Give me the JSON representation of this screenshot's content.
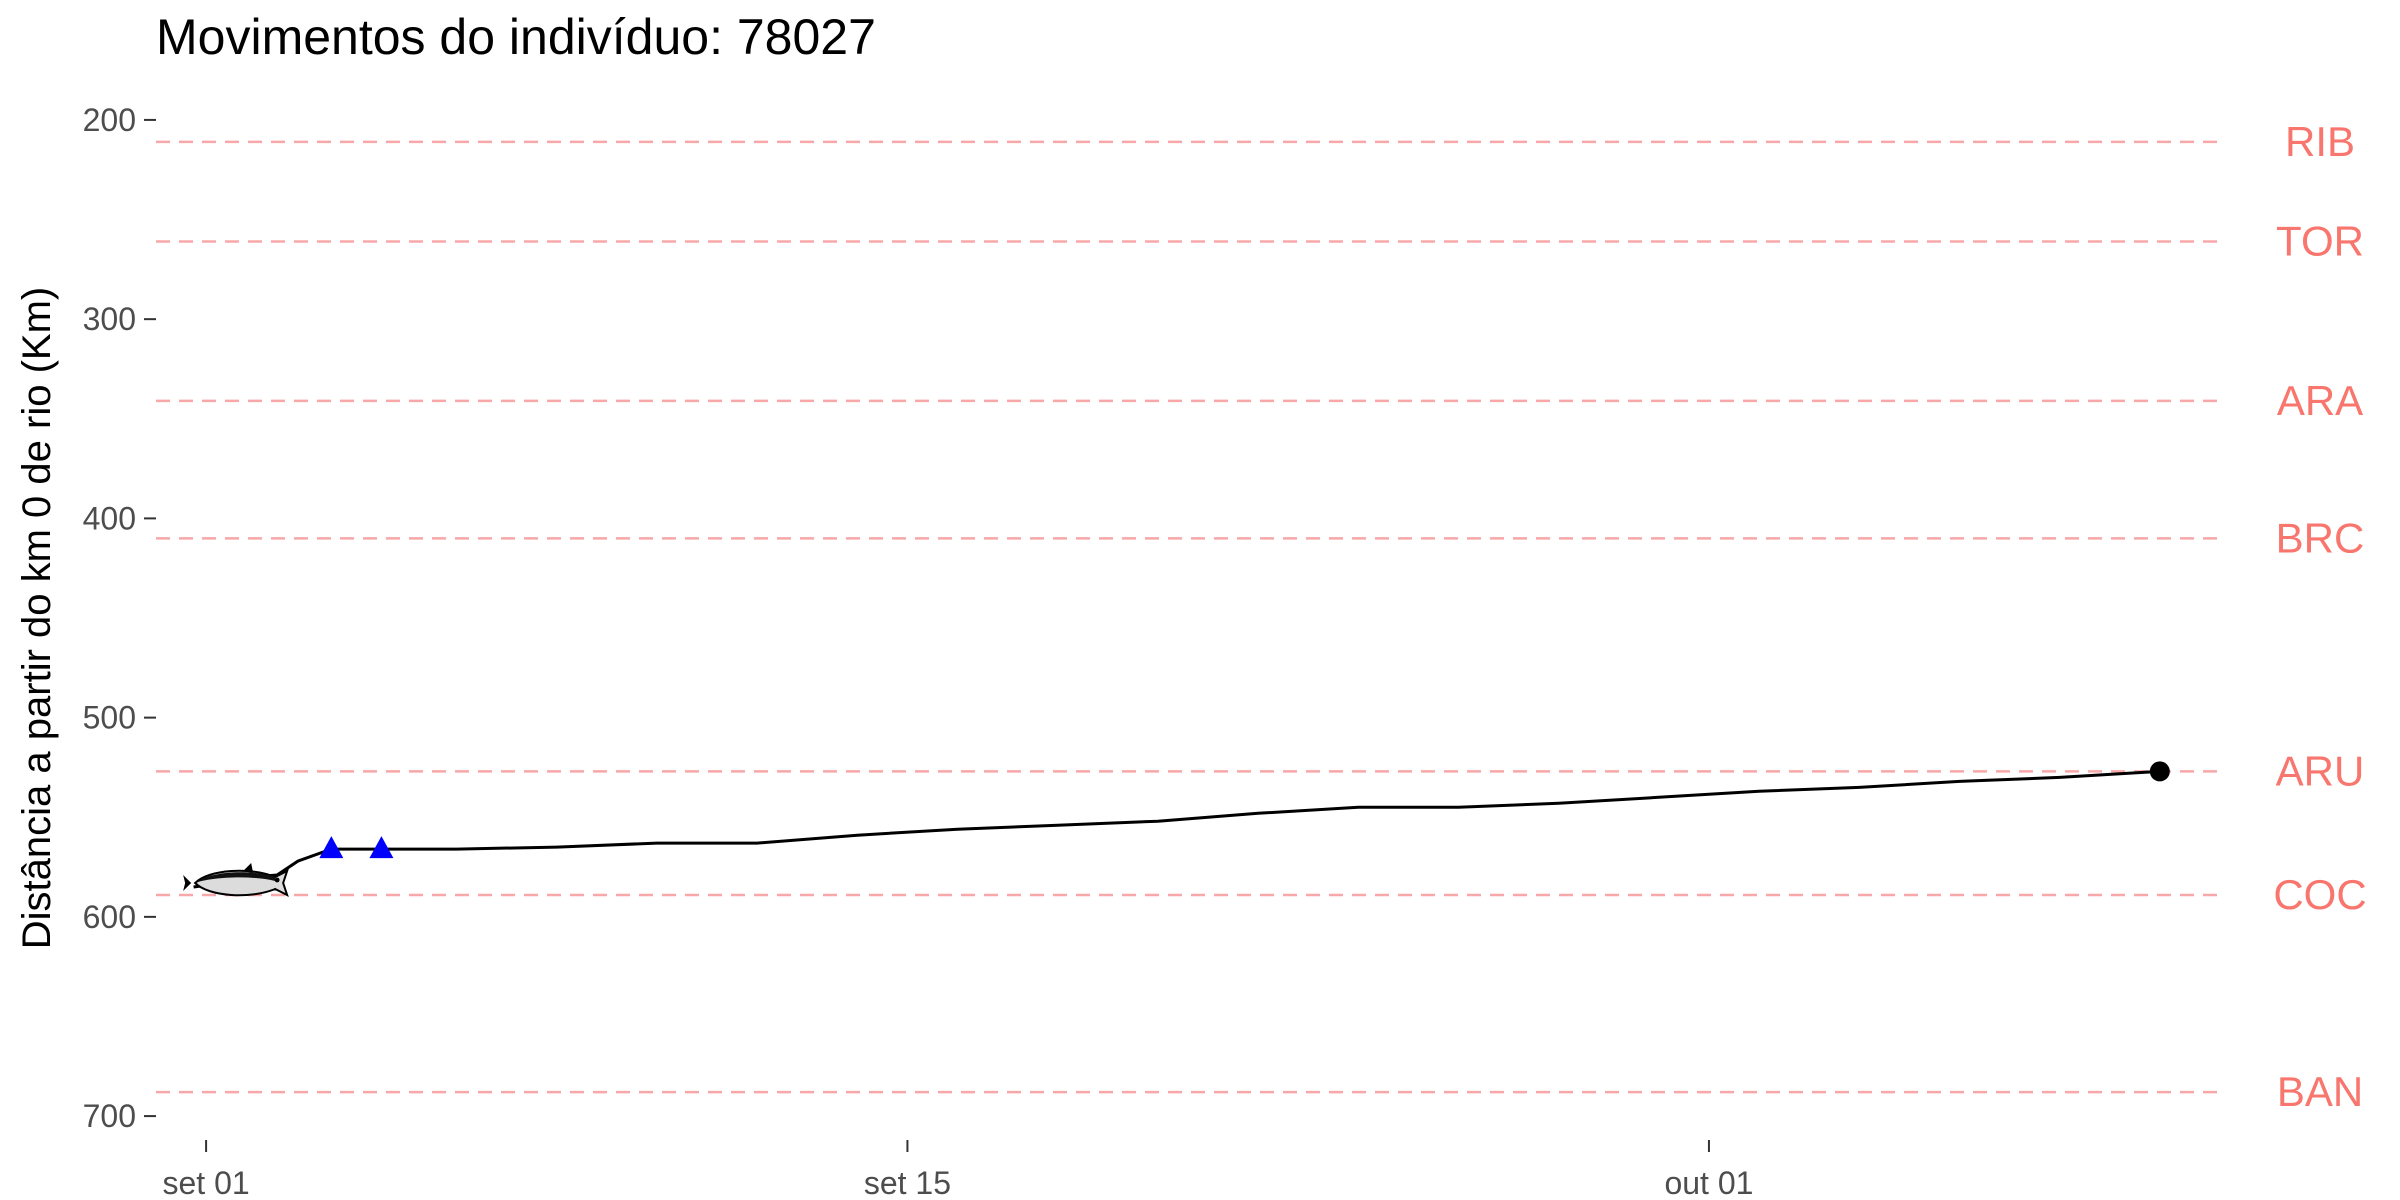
{
  "chart_data": {
    "type": "line",
    "title": "Movimentos do indivíduo: 78027",
    "xlabel": "",
    "ylabel": "Distância a partir do km 0 de rio (Km)",
    "x_axis": {
      "type": "date",
      "range": [
        "2019-08-31",
        "2019-10-12"
      ],
      "ticks": [
        {
          "value": "2019-09-01",
          "label": "set 01"
        },
        {
          "value": "2019-09-15",
          "label": "set 15"
        },
        {
          "value": "2019-10-01",
          "label": "out 01"
        }
      ]
    },
    "y_axis": {
      "reversed": true,
      "range": [
        190,
        712
      ],
      "ticks": [
        200,
        300,
        400,
        500,
        600,
        700
      ]
    },
    "grid": false,
    "colors": {
      "line": "#000000",
      "station_line": "#f8a8a8",
      "station_label": "#f8766d",
      "detection_marker": "#0000ff",
      "end_marker": "#000000",
      "axis_text": "#4d4d4d"
    },
    "stations": [
      {
        "name": "RIB",
        "km": 211
      },
      {
        "name": "TOR",
        "km": 261
      },
      {
        "name": "ARA",
        "km": 341
      },
      {
        "name": "BRC",
        "km": 410
      },
      {
        "name": "ARU",
        "km": 527
      },
      {
        "name": "COC",
        "km": 589
      },
      {
        "name": "BAN",
        "km": 688
      }
    ],
    "series": [
      {
        "points": [
          {
            "x": "2019-08-31T18:00",
            "y": 585
          },
          {
            "x": "2019-09-01T08:00",
            "y": 583
          },
          {
            "x": "2019-09-01T22:00",
            "y": 580
          },
          {
            "x": "2019-09-02T10:00",
            "y": 579
          },
          {
            "x": "2019-09-02T20:00",
            "y": 572
          },
          {
            "x": "2019-09-03T12:00",
            "y": 566
          },
          {
            "x": "2019-09-04T12:00",
            "y": 566
          },
          {
            "x": "2019-09-06T00:00",
            "y": 566
          },
          {
            "x": "2019-09-08T00:00",
            "y": 565
          },
          {
            "x": "2019-09-10T00:00",
            "y": 563
          },
          {
            "x": "2019-09-12T00:00",
            "y": 563
          },
          {
            "x": "2019-09-14T00:00",
            "y": 559
          },
          {
            "x": "2019-09-16T00:00",
            "y": 556
          },
          {
            "x": "2019-09-18T00:00",
            "y": 554
          },
          {
            "x": "2019-09-20T00:00",
            "y": 552
          },
          {
            "x": "2019-09-22T00:00",
            "y": 548
          },
          {
            "x": "2019-09-24T00:00",
            "y": 545
          },
          {
            "x": "2019-09-26T00:00",
            "y": 545
          },
          {
            "x": "2019-09-28T00:00",
            "y": 543
          },
          {
            "x": "2019-09-30T00:00",
            "y": 540
          },
          {
            "x": "2019-10-02T00:00",
            "y": 537
          },
          {
            "x": "2019-10-04T00:00",
            "y": 535
          },
          {
            "x": "2019-10-06T00:00",
            "y": 532
          },
          {
            "x": "2019-10-08T00:00",
            "y": 530
          },
          {
            "x": "2019-10-10T00:00",
            "y": 527
          }
        ]
      }
    ],
    "detections": [
      {
        "x": "2019-09-03T12:00",
        "y": 566
      },
      {
        "x": "2019-09-04T12:00",
        "y": 566
      }
    ],
    "end_point": {
      "x": "2019-10-10T00:00",
      "y": 527
    },
    "start_marker": {
      "x": "2019-09-01T12:00",
      "y": 582,
      "icon": "fish-icon"
    }
  }
}
